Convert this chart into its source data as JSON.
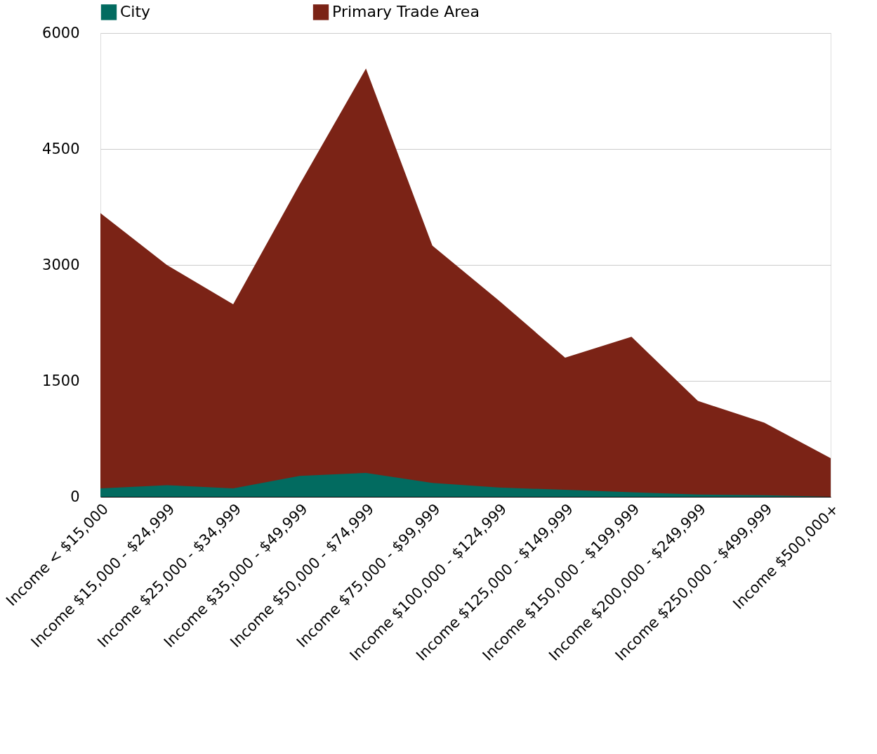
{
  "chart_data": {
    "type": "area",
    "categories": [
      "Income < $15,000",
      "Income $15,000 - $24,999",
      "Income $25,000 - $34,999",
      "Income $35,000 - $49,999",
      "Income $50,000 - $74,999",
      "Income $75,000 - $99,999",
      "Income $100,000 - $124,999",
      "Income $125,000 - $149,999",
      "Income $150,000 - $199,999",
      "Income $200,000 - $249,999",
      "Income $250,000 - $499,999",
      "Income $500,000+"
    ],
    "series": [
      {
        "name": "City",
        "color": "#026b60",
        "values": [
          110,
          150,
          110,
          270,
          310,
          180,
          120,
          90,
          60,
          30,
          20,
          0
        ]
      },
      {
        "name": "Primary Trade Area",
        "color": "#7b2316",
        "values": [
          3670,
          3000,
          2490,
          4040,
          5540,
          3250,
          2540,
          1800,
          2070,
          1240,
          960,
          500
        ]
      }
    ],
    "ylim": [
      0,
      6000
    ],
    "yticks": [
      0,
      1500,
      3000,
      4500,
      6000
    ],
    "grid": "y",
    "legend": "top"
  }
}
